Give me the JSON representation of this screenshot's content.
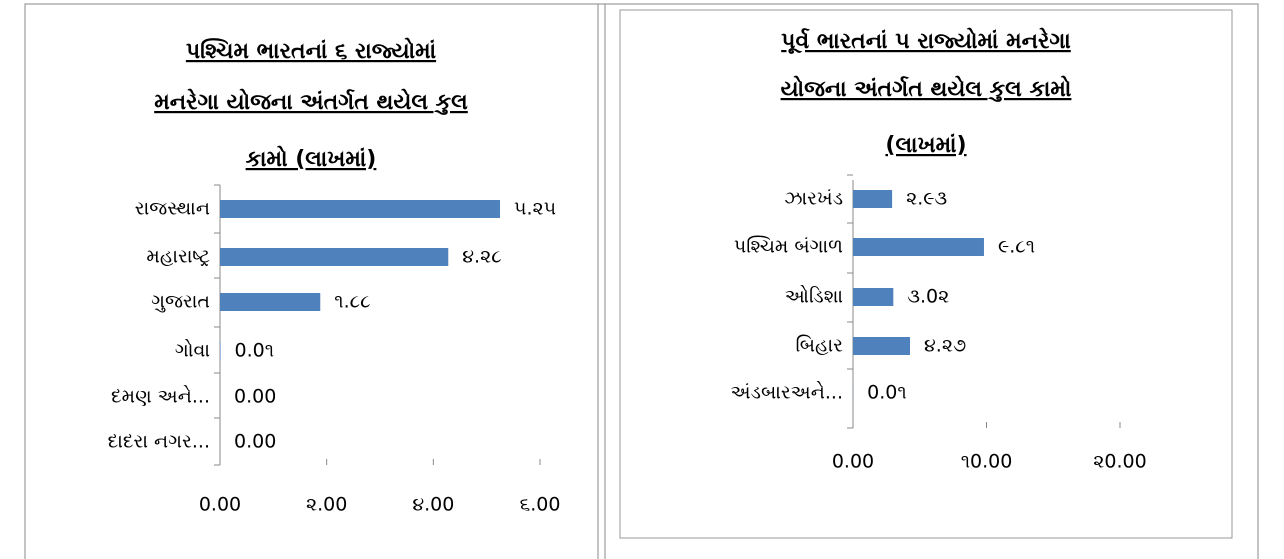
{
  "chart_data": [
    {
      "type": "bar",
      "orientation": "horizontal",
      "title_lines": [
        "પશ્ચિમ  ભારતનાં ૬ રાજ્યોમાં",
        "મનરેગા યોજના અંતર્ગત થયેલ કુલ",
        "કામો (લાખમાં)"
      ],
      "categories": [
        "રાજસ્થાન",
        "મહારાષ્ટ્ર",
        "ગુજરાત",
        "ગોવા",
        "દમણ અને...",
        "દાદરા નગર..."
      ],
      "values": [
        5.25,
        4.28,
        1.88,
        0.01,
        0.0,
        0.0
      ],
      "value_labels": [
        "૫.૨૫",
        "૪.૨૮",
        "૧.૮૮",
        "0.0૧",
        "0.00",
        "0.00"
      ],
      "color": "#4f81bd",
      "xlim": [
        0,
        6
      ],
      "xticks": [
        {
          "value": 0,
          "label": "0.00"
        },
        {
          "value": 2,
          "label": "૨.00"
        },
        {
          "value": 4,
          "label": "૪.00"
        },
        {
          "value": 6,
          "label": "૬.00"
        }
      ]
    },
    {
      "type": "bar",
      "orientation": "horizontal",
      "title_lines": [
        "પૂર્વ ભારતનાં ૫ રાજ્યોમાં મનરેગા",
        "યોજના અંતર્ગત થયેલ કુલ કામો",
        "(લાખમાં)"
      ],
      "categories": [
        "ઝારખંડ",
        "પશ્ચિમ બંગાળ",
        "ઓડિશા",
        "બિહાર",
        "અંડબારઅને..."
      ],
      "values": [
        2.93,
        9.81,
        3.02,
        4.27,
        0.01
      ],
      "value_labels": [
        "૨.૯૩",
        "૯.૮૧",
        "૩.0૨",
        "૪.૨૭",
        "0.0૧"
      ],
      "color": "#4f81bd",
      "xlim": [
        0,
        20
      ],
      "xticks": [
        {
          "value": 0,
          "label": "0.00"
        },
        {
          "value": 10,
          "label": "૧0.00"
        },
        {
          "value": 20,
          "label": "૨0.00"
        }
      ]
    }
  ]
}
